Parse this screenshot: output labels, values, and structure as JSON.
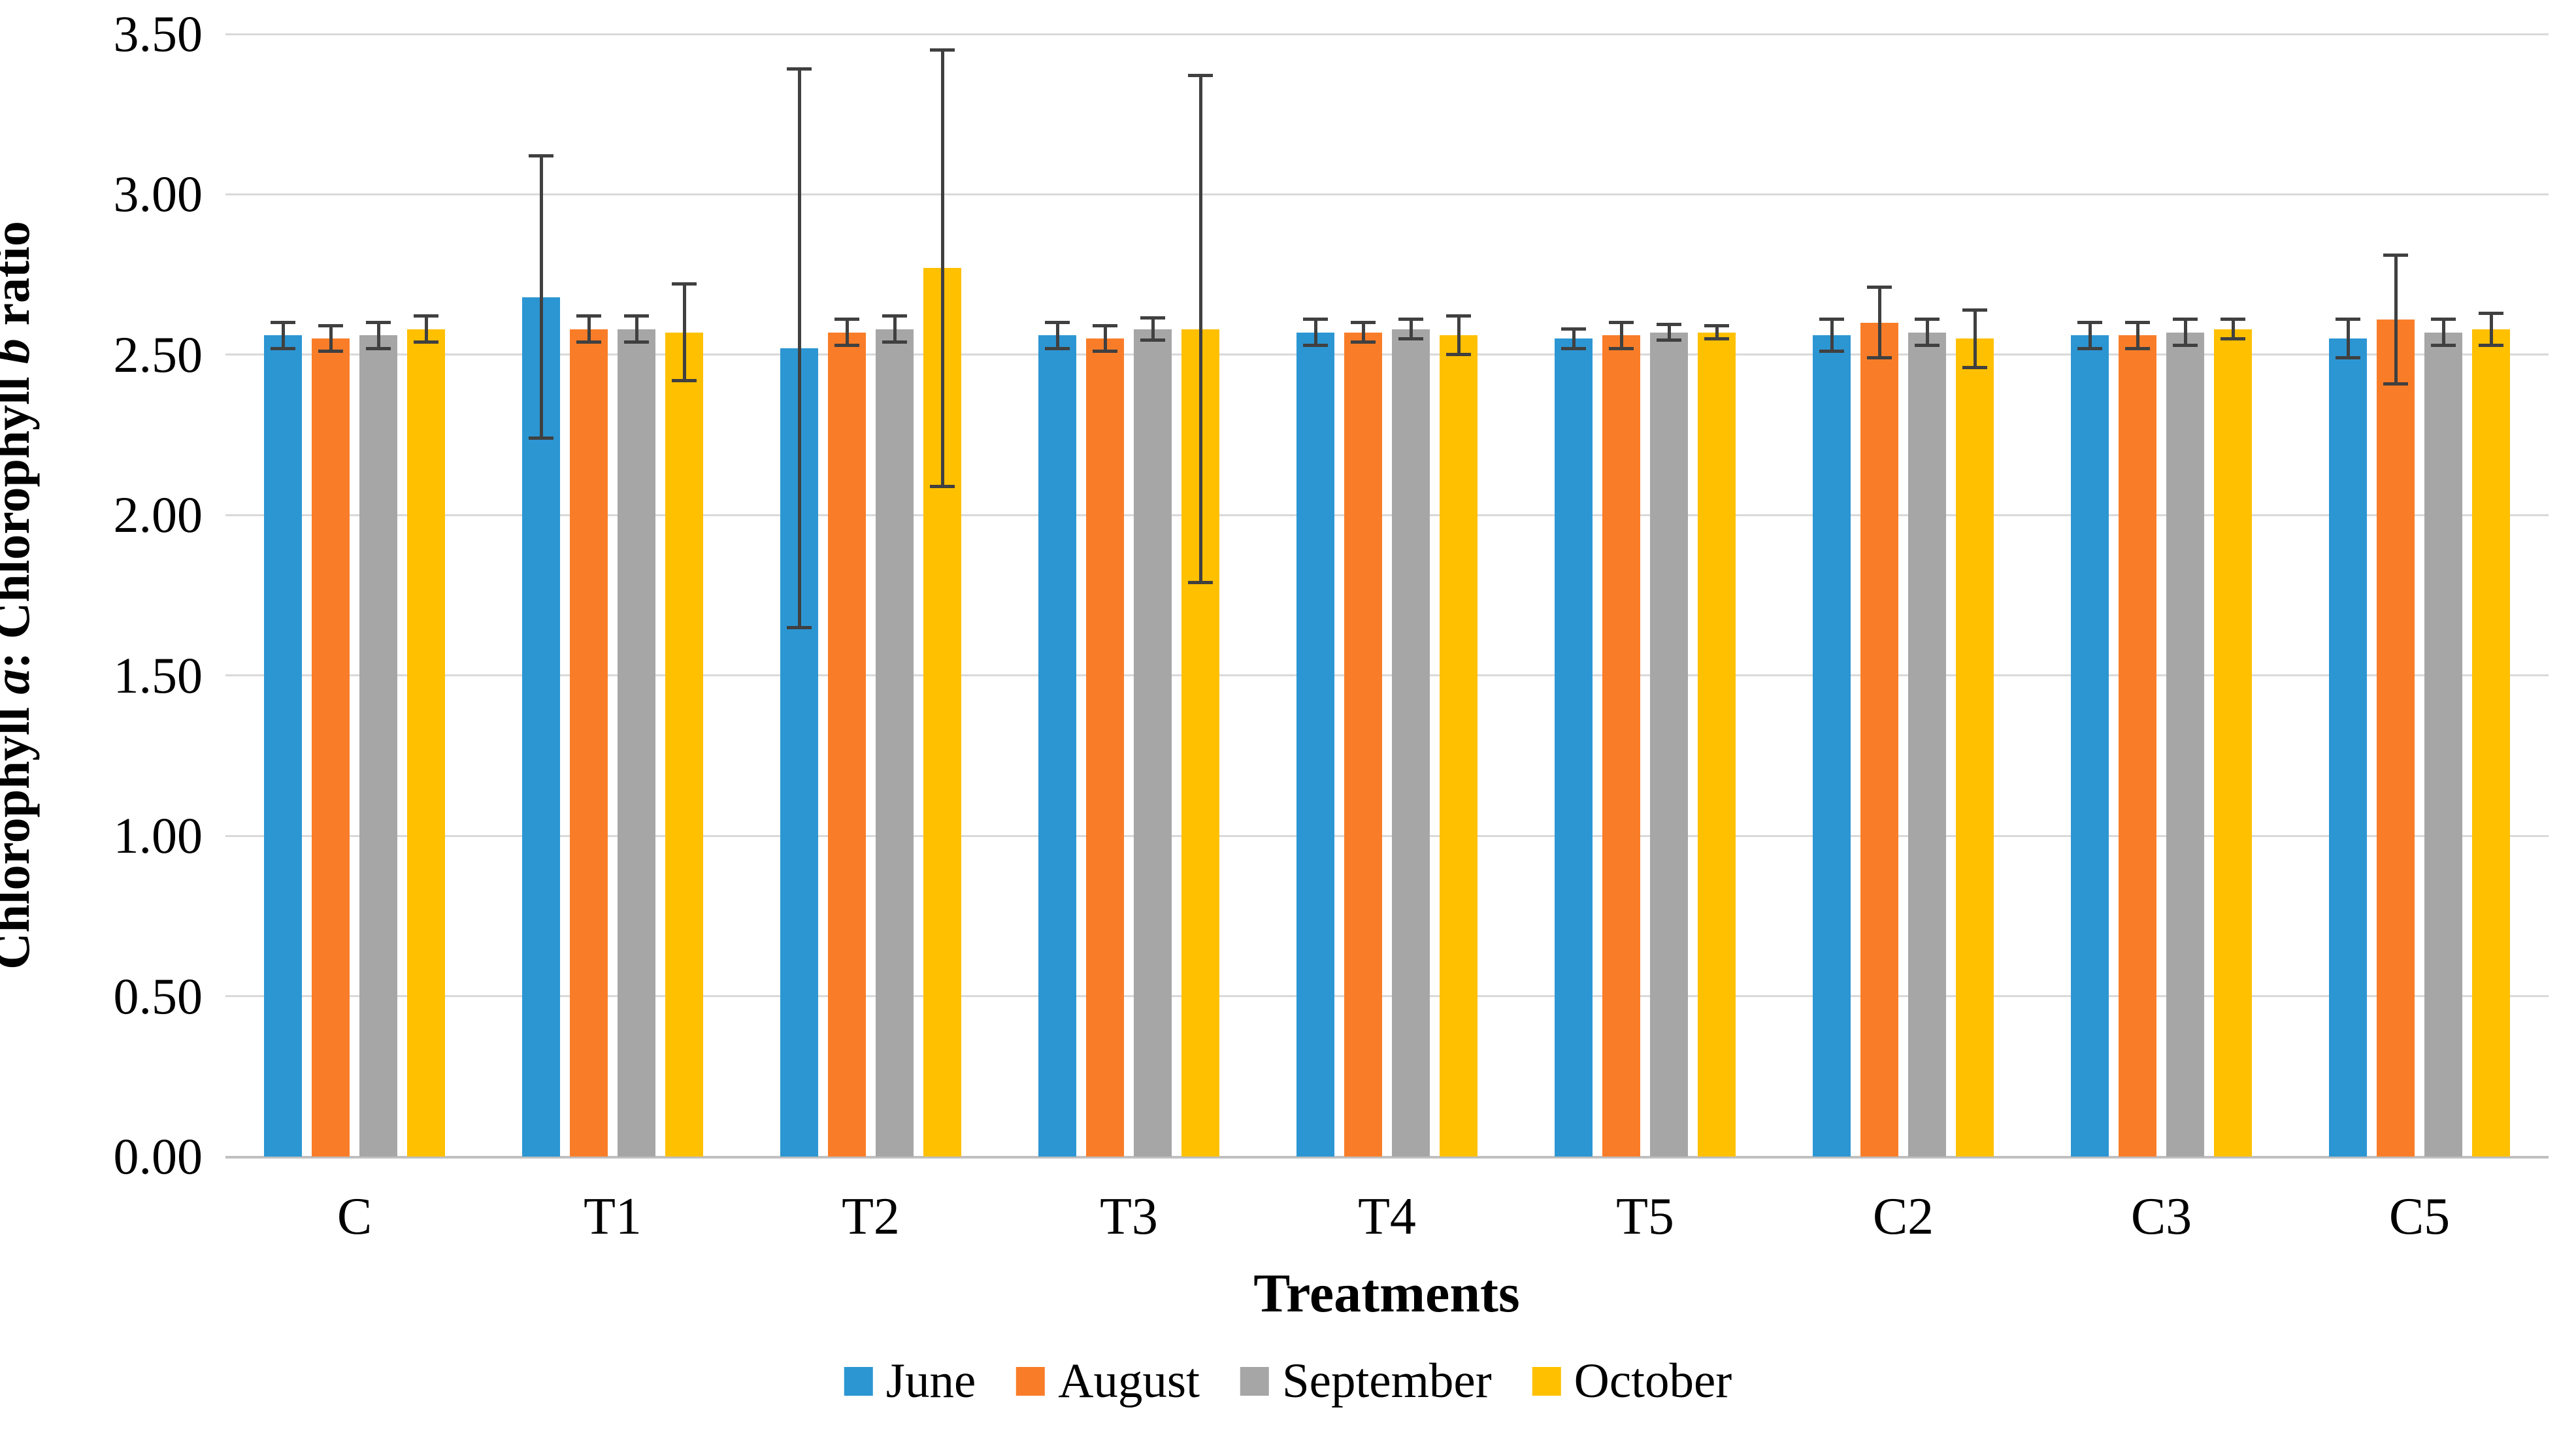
{
  "page": {
    "background": "#ffffff"
  },
  "chart_data": {
    "type": "bar",
    "title": "",
    "xlabel": "Treatments",
    "ylabel": "Chlorophyll a: Chlorophyll b ratio",
    "ylabel_rich": [
      {
        "text": "Chlorophyll ",
        "italic": false
      },
      {
        "text": "a",
        "italic": true
      },
      {
        "text": ": Chlorophyll ",
        "italic": false
      },
      {
        "text": "b",
        "italic": true
      },
      {
        "text": " ratio",
        "italic": false
      }
    ],
    "ylim": [
      0,
      3.5
    ],
    "ytick_step": 0.5,
    "ytick_labels": [
      "3.50",
      "3.00",
      "2.50",
      "2.00",
      "1.50",
      "1.00",
      "0.50",
      "0.00"
    ],
    "grid": true,
    "error_bars": true,
    "legend_position": "bottom",
    "categories": [
      "C",
      "T1",
      "T2",
      "T3",
      "T4",
      "T5",
      "C2",
      "C3",
      "C5"
    ],
    "series": [
      {
        "name": "June",
        "color": "#2C96D3",
        "values": [
          2.56,
          2.68,
          2.52,
          2.56,
          2.57,
          2.55,
          2.56,
          2.56,
          2.55
        ],
        "errors": [
          0.04,
          0.44,
          0.87,
          0.04,
          0.04,
          0.03,
          0.05,
          0.04,
          0.06
        ]
      },
      {
        "name": "August",
        "color": "#F97D28",
        "values": [
          2.55,
          2.58,
          2.57,
          2.55,
          2.57,
          2.56,
          2.6,
          2.56,
          2.61
        ],
        "errors": [
          0.04,
          0.04,
          0.04,
          0.04,
          0.03,
          0.04,
          0.11,
          0.04,
          0.2
        ]
      },
      {
        "name": "September",
        "color": "#A6A6A6",
        "values": [
          2.56,
          2.58,
          2.58,
          2.58,
          2.58,
          2.57,
          2.57,
          2.57,
          2.57
        ],
        "errors": [
          0.04,
          0.04,
          0.04,
          0.035,
          0.03,
          0.025,
          0.04,
          0.04,
          0.04
        ]
      },
      {
        "name": "October",
        "color": "#FFC000",
        "values": [
          2.58,
          2.57,
          2.77,
          2.58,
          2.56,
          2.57,
          2.55,
          2.58,
          2.58
        ],
        "errors": [
          0.04,
          0.15,
          0.68,
          0.79,
          0.06,
          0.02,
          0.09,
          0.03,
          0.05
        ]
      }
    ],
    "style": {
      "gridline_color": "#d9d9d9",
      "axis_line_color": "#bfbfbf",
      "error_bar_color": "#404040"
    }
  }
}
